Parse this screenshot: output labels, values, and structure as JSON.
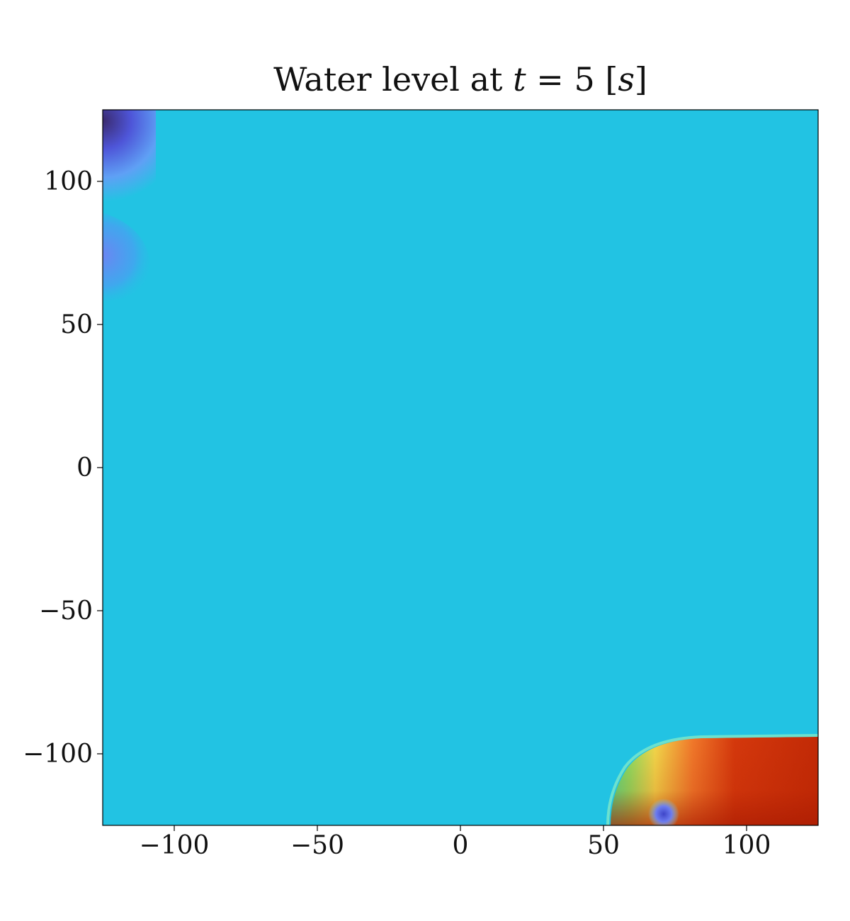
{
  "chart_data": {
    "type": "heatmap",
    "title": "Water level at t = 5 [s]",
    "title_parts": {
      "prefix": "Water level at ",
      "var": "t",
      "eq": " = 5 ",
      "unit_open": "[",
      "unit": "s",
      "unit_close": "]"
    },
    "xlabel": "",
    "ylabel": "",
    "xlim": [
      -125,
      125
    ],
    "ylim": [
      -125,
      125
    ],
    "xticks": [
      -100,
      -50,
      0,
      50,
      100
    ],
    "yticks": [
      100,
      50,
      0,
      -50,
      -100
    ],
    "xtick_labels": [
      "−100",
      "−50",
      "0",
      "50",
      "100"
    ],
    "ytick_labels": [
      "100",
      "50",
      "0",
      "−50",
      "−100"
    ],
    "grid": false,
    "colors": {
      "background": "#22C3E3",
      "low_deep": "#3A2A6E",
      "low": "#4E55D8",
      "low_mid": "#5FA0F5",
      "mid_green": "#4CE08A",
      "mid_yellow": "#F2D84A",
      "high_orange": "#F0782A",
      "high": "#D4380C",
      "high_deep": "#A81A02"
    }
  }
}
